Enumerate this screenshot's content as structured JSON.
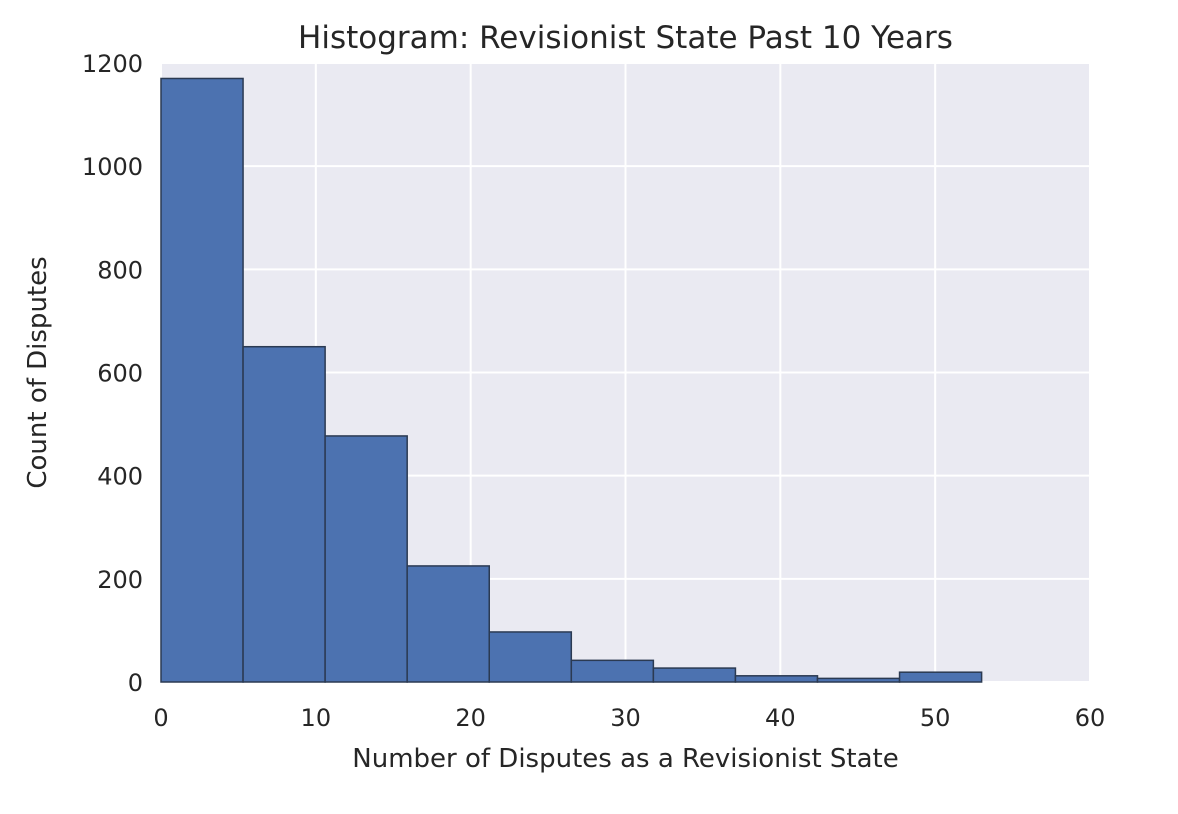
{
  "chart_data": {
    "type": "bar",
    "title": "Histogram: Revisionist State Past 10 Years",
    "xlabel": "Number of Disputes as a Revisionist State",
    "ylabel": "Count of Disputes",
    "xlim": [
      0,
      60
    ],
    "ylim": [
      0,
      1200
    ],
    "xticks": [
      0,
      10,
      20,
      30,
      40,
      50,
      60
    ],
    "yticks": [
      0,
      200,
      400,
      600,
      800,
      1000,
      1200
    ],
    "grid": true,
    "bar_color": "#4c72b0",
    "edge_color": "#2b3a52",
    "background_color": "#eaeaf2",
    "grid_color": "#ffffff",
    "bins": [
      {
        "x0": 0.0,
        "x1": 5.3,
        "count": 1170
      },
      {
        "x0": 5.3,
        "x1": 10.6,
        "count": 650
      },
      {
        "x0": 10.6,
        "x1": 15.9,
        "count": 477
      },
      {
        "x0": 15.9,
        "x1": 21.2,
        "count": 225
      },
      {
        "x0": 21.2,
        "x1": 26.5,
        "count": 97
      },
      {
        "x0": 26.5,
        "x1": 31.8,
        "count": 42
      },
      {
        "x0": 31.8,
        "x1": 37.1,
        "count": 27
      },
      {
        "x0": 37.1,
        "x1": 42.4,
        "count": 12
      },
      {
        "x0": 42.4,
        "x1": 47.7,
        "count": 7
      },
      {
        "x0": 47.7,
        "x1": 53.0,
        "count": 19
      }
    ]
  }
}
